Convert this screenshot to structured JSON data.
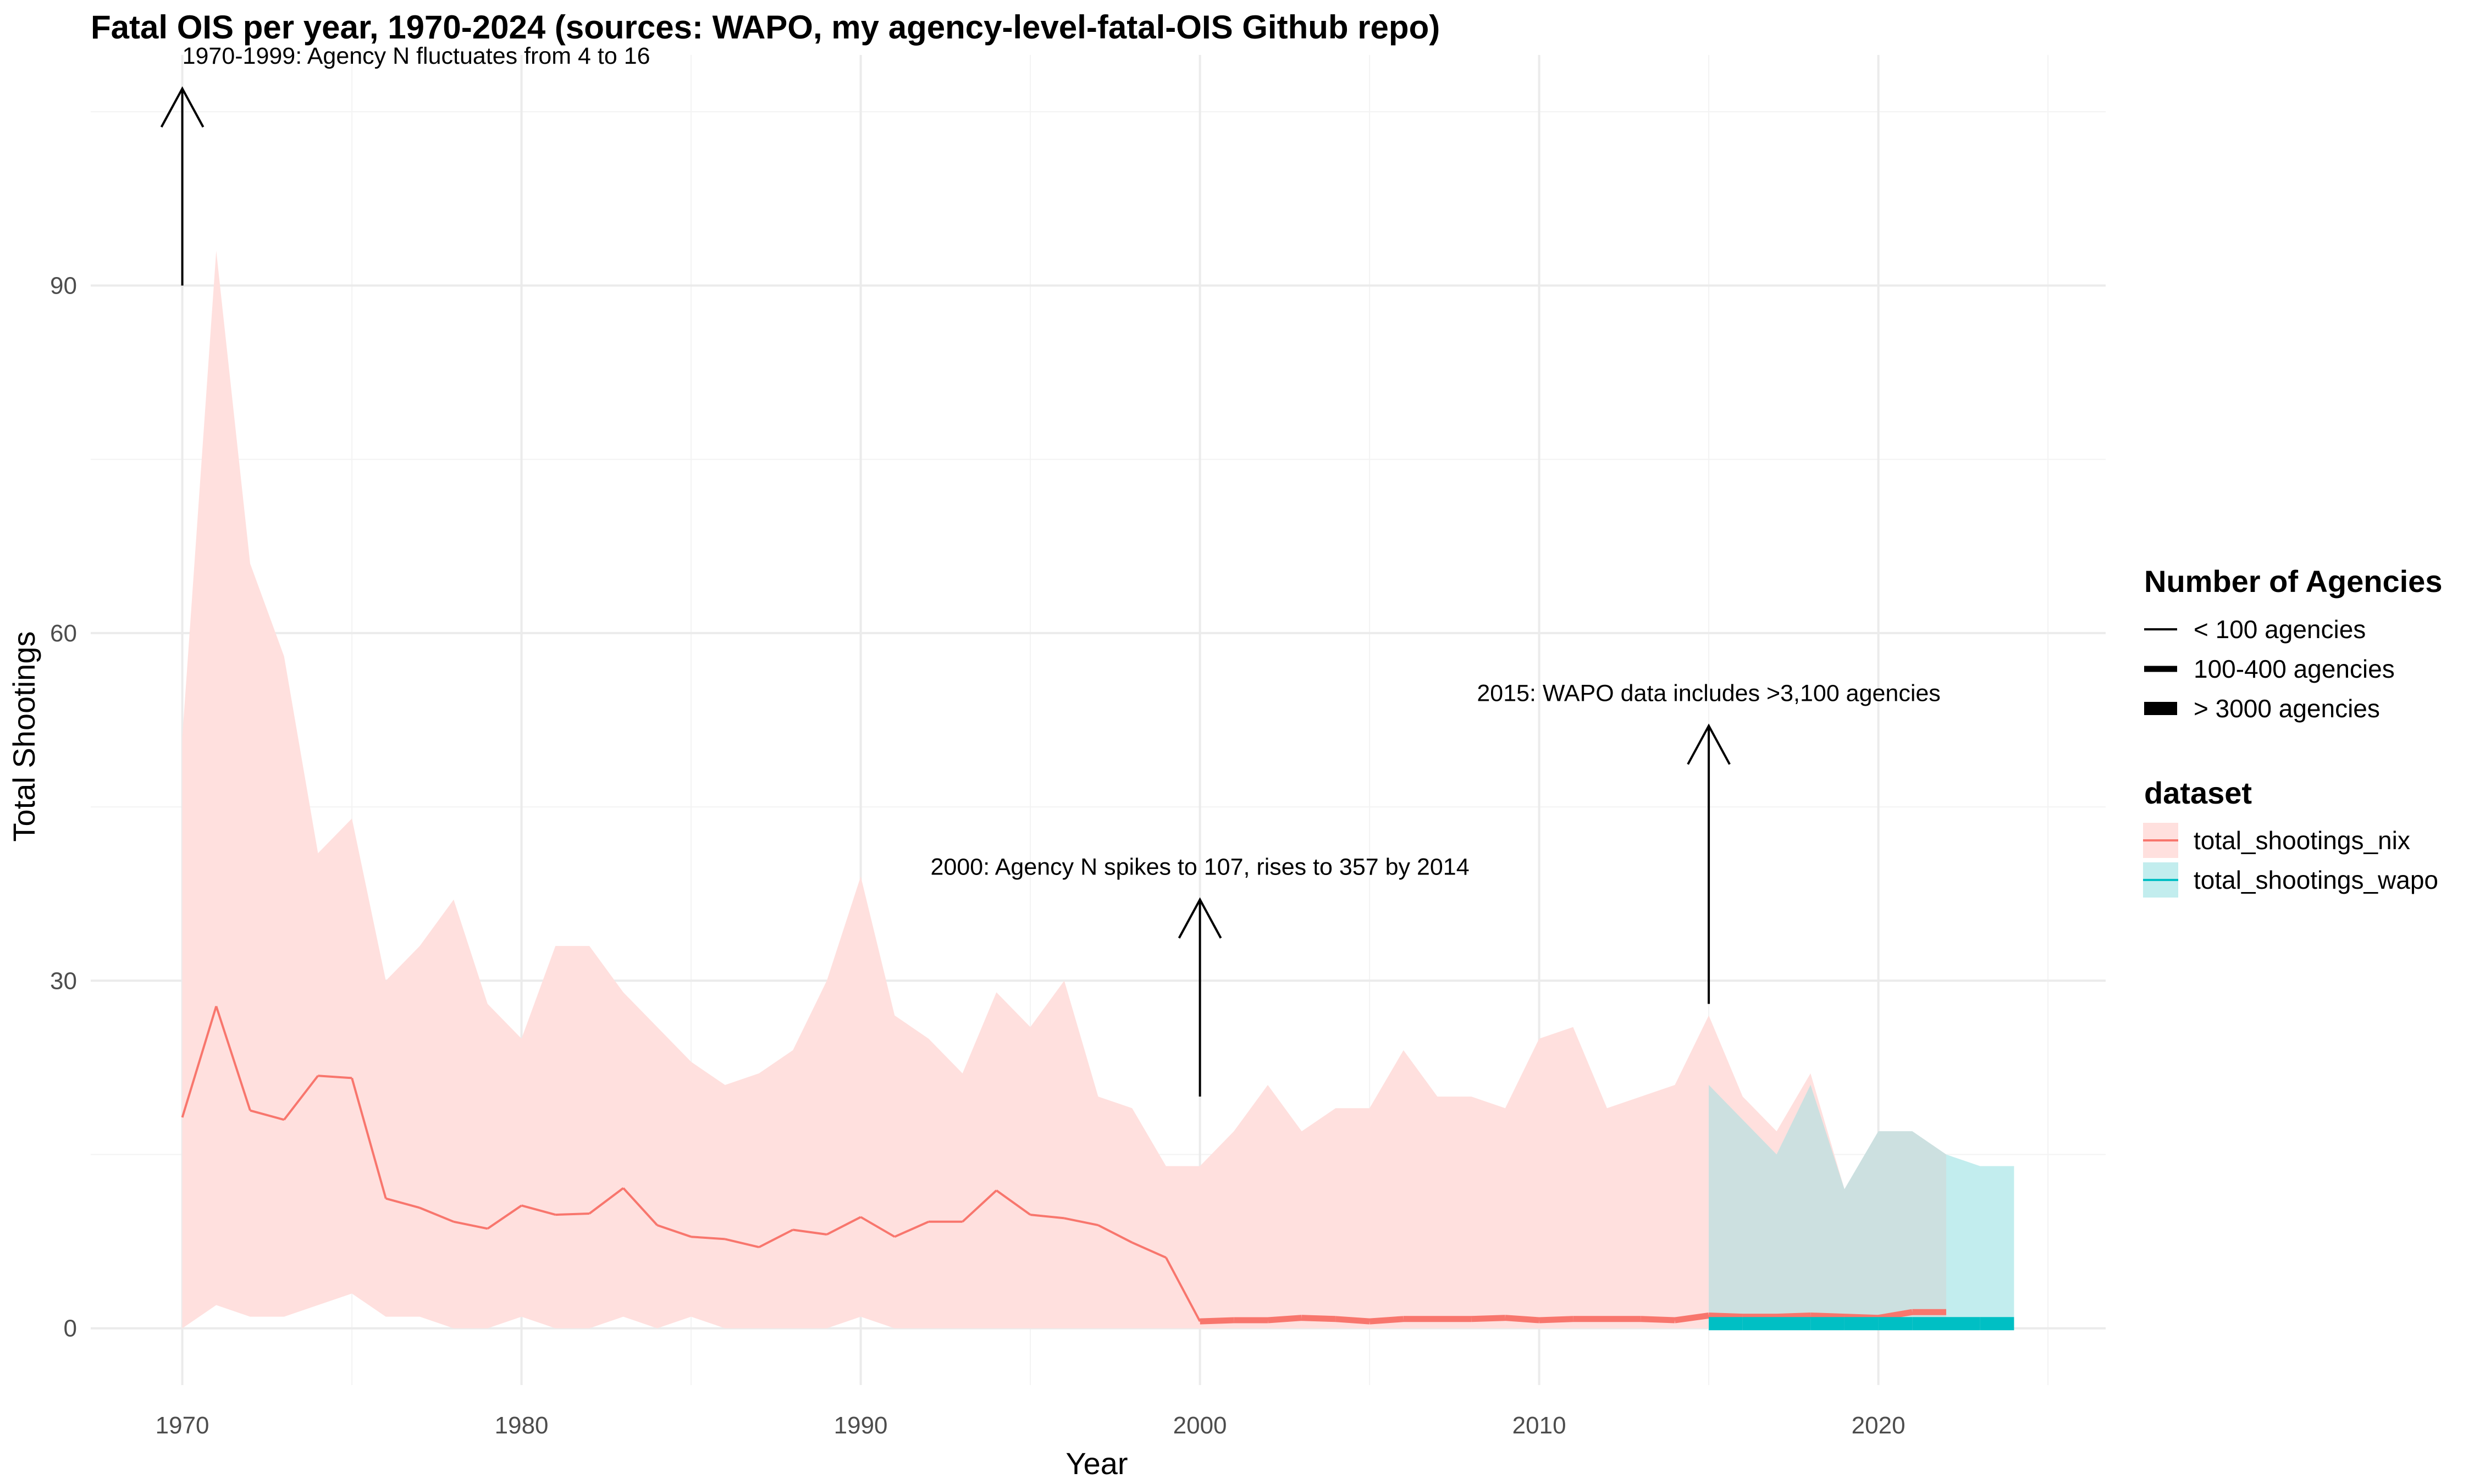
{
  "chart_data": {
    "type": "line",
    "title": "Fatal OIS per year, 1970-2024 (sources: WAPO, my agency-level-fatal-OIS Github repo)",
    "xlabel": "Year",
    "ylabel": "Total Shootings",
    "xlim": [
      1967.3,
      2026.7
    ],
    "ylim": [
      -4.9,
      109.9
    ],
    "x_ticks": [
      1970,
      1980,
      1990,
      2000,
      2010,
      2020
    ],
    "y_ticks": [
      0,
      30,
      60,
      90
    ],
    "grid": true,
    "colors": {
      "nix": "#F8766D",
      "nix_ribbon": "#FFE0DE",
      "wapo": "#00BFC4",
      "wapo_ribbon": "#C2EDEE",
      "overlap": "#CCE0E0"
    },
    "nix_ribbon": {
      "x": [
        1970,
        1971,
        1972,
        1973,
        1974,
        1975,
        1976,
        1977,
        1978,
        1979,
        1980,
        1981,
        1982,
        1983,
        1984,
        1985,
        1986,
        1987,
        1988,
        1989,
        1990,
        1991,
        1992,
        1993,
        1994,
        1995,
        1996,
        1997,
        1998,
        1999,
        2000,
        2001,
        2002,
        2003,
        2004,
        2005,
        2006,
        2007,
        2008,
        2009,
        2010,
        2011,
        2012,
        2013,
        2014,
        2015,
        2016,
        2017,
        2018,
        2019,
        2020,
        2021,
        2022
      ],
      "upper": [
        51,
        93,
        66,
        58,
        41,
        44,
        30,
        33,
        37,
        28,
        25,
        33,
        33,
        29,
        26,
        23,
        21,
        22,
        24,
        30,
        39,
        27,
        25,
        22,
        29,
        26,
        30,
        20,
        19,
        14,
        14,
        17,
        21,
        17,
        19,
        19,
        24,
        20,
        20,
        19,
        25,
        26,
        19,
        20,
        21,
        27,
        20,
        17,
        22,
        12,
        17,
        17,
        15
      ],
      "lower": [
        0,
        2,
        1,
        1,
        2,
        3,
        1,
        1,
        0,
        0,
        1,
        0,
        0,
        1,
        0,
        1,
        0,
        0,
        0,
        0,
        1,
        0,
        0,
        0,
        0,
        0,
        0,
        0,
        0,
        0,
        0,
        0,
        0,
        0,
        0,
        0,
        0,
        0,
        0,
        0,
        0,
        0,
        0,
        0,
        0,
        0,
        0,
        0,
        0,
        0,
        0,
        0,
        0
      ]
    },
    "wapo_ribbon": {
      "x": [
        2015,
        2016,
        2017,
        2018,
        2019,
        2020,
        2021,
        2022,
        2023,
        2024
      ],
      "upper": [
        21,
        18,
        15,
        21,
        12,
        17,
        17,
        15,
        14,
        14
      ],
      "lower": [
        0,
        0,
        0,
        0,
        0,
        0,
        0,
        0,
        0,
        0
      ]
    },
    "series": [
      {
        "name": "total_shootings_nix",
        "x": [
          1970,
          1971,
          1972,
          1973,
          1974,
          1975,
          1976,
          1977,
          1978,
          1979,
          1980,
          1981,
          1982,
          1983,
          1984,
          1985,
          1986,
          1987,
          1988,
          1989,
          1990,
          1991,
          1992,
          1993,
          1994,
          1995,
          1996,
          1997,
          1998,
          1999,
          2000,
          2001,
          2002,
          2003,
          2004,
          2005,
          2006,
          2007,
          2008,
          2009,
          2010,
          2011,
          2012,
          2013,
          2014,
          2015,
          2016,
          2017,
          2018,
          2019,
          2020,
          2021,
          2022
        ],
        "values": [
          18.2,
          27.8,
          18.8,
          18,
          21.8,
          21.6,
          11.2,
          10.4,
          9.2,
          8.6,
          10.6,
          9.8,
          9.9,
          12.1,
          8.9,
          7.9,
          7.7,
          7,
          8.5,
          8.1,
          9.6,
          7.9,
          9.2,
          9.2,
          11.9,
          9.8,
          9.5,
          8.9,
          7.4,
          6.1,
          0.6,
          0.7,
          0.7,
          0.9,
          0.8,
          0.6,
          0.8,
          0.8,
          0.8,
          0.9,
          0.7,
          0.8,
          0.8,
          0.8,
          0.7,
          1.1,
          1,
          1,
          1.1,
          1,
          0.9,
          1.4,
          1.4
        ],
        "agency_group": [
          "<100",
          "<100",
          "<100",
          "<100",
          "<100",
          "<100",
          "<100",
          "<100",
          "<100",
          "<100",
          "<100",
          "<100",
          "<100",
          "<100",
          "<100",
          "<100",
          "<100",
          "<100",
          "<100",
          "<100",
          "<100",
          "<100",
          "<100",
          "<100",
          "<100",
          "<100",
          "<100",
          "<100",
          "<100",
          "<100",
          "100-400",
          "100-400",
          "100-400",
          "100-400",
          "100-400",
          "100-400",
          "100-400",
          "100-400",
          "100-400",
          "100-400",
          "100-400",
          "100-400",
          "100-400",
          "100-400",
          "100-400",
          "100-400",
          "100-400",
          "100-400",
          "100-400",
          "100-400",
          "100-400",
          "100-400",
          "100-400"
        ]
      },
      {
        "name": "total_shootings_wapo",
        "x": [
          2015,
          2016,
          2017,
          2018,
          2019,
          2020,
          2021,
          2022,
          2023,
          2024
        ],
        "values": [
          0.4,
          0.4,
          0.4,
          0.4,
          0.4,
          0.4,
          0.4,
          0.4,
          0.4,
          0.4
        ],
        "agency_group": [
          ">3000",
          ">3000",
          ">3000",
          ">3000",
          ">3000",
          ">3000",
          ">3000",
          ">3000",
          ">3000",
          ">3000"
        ]
      }
    ],
    "annotations": [
      {
        "text": "1970-1999: Agency N fluctuates from 4 to 16",
        "x": 1970,
        "y_from": 90,
        "y_to": 107
      },
      {
        "text": "2000: Agency N spikes to 107, rises to 357 by 2014",
        "x": 2000,
        "y_from": 20,
        "y_to": 37
      },
      {
        "text": "2015: WAPO data includes >3,100 agencies",
        "x": 2015,
        "y_from": 28,
        "y_to": 52
      }
    ],
    "legend": {
      "placement": "right",
      "size_title": "Number of Agencies",
      "size_items": [
        "< 100 agencies",
        "100-400 agencies",
        "> 3000 agencies"
      ],
      "color_title": "dataset",
      "color_items": [
        "total_shootings_nix",
        "total_shootings_wapo"
      ]
    }
  }
}
